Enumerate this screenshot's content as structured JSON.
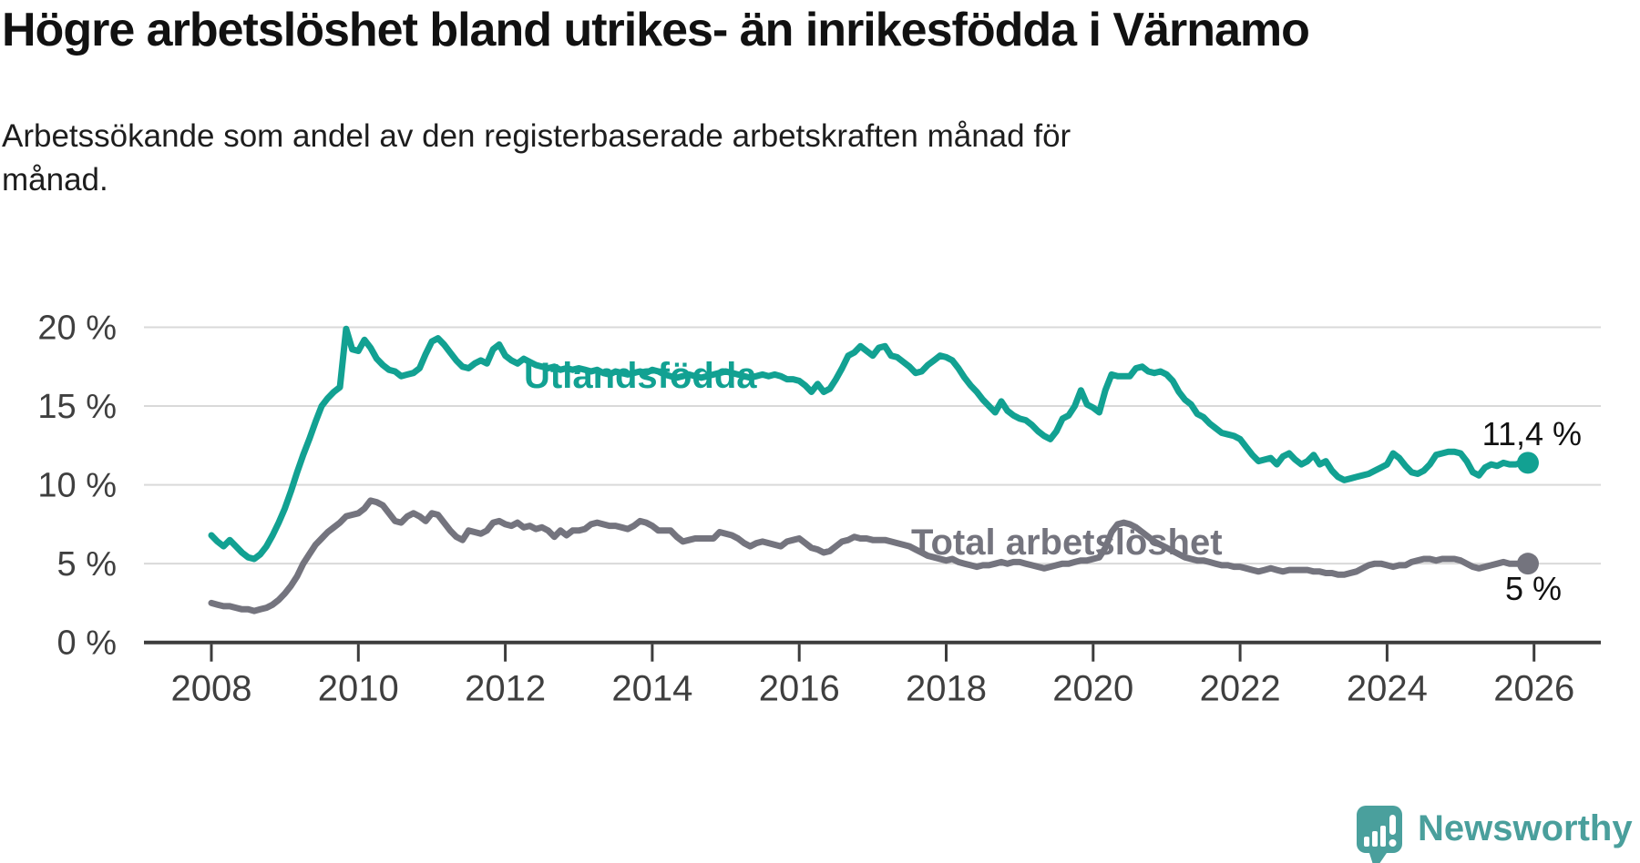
{
  "header": {
    "title": "Högre arbetslöshet bland utrikes- än inrikesfödda i Värnamo",
    "subtitle_lines": [
      "Arbetssökande som andel av den registerbaserade arbetskraften månad för",
      "månad."
    ]
  },
  "chart_data": {
    "type": "line",
    "title": "Högre arbetslöshet bland utrikes- än inrikesfödda i Värnamo",
    "subtitle": "Arbetssökande som andel av den registerbaserade arbetskraften månad för månad.",
    "x_unit": "year",
    "x_start_year": 2008,
    "points_per_year": 12,
    "x_ticks": [
      2008,
      2010,
      2012,
      2014,
      2016,
      2018,
      2020,
      2022,
      2024,
      2026
    ],
    "y_ticks": [
      0,
      5,
      10,
      15,
      20
    ],
    "y_tick_suffix": " %",
    "ylim": [
      0,
      21
    ],
    "grid": true,
    "legend_position": "inline-labels",
    "colors": {
      "grid": "#d9d9d9",
      "axis": "#3c3c3c",
      "tick_text": "#3f3f3f",
      "annotation_text": "#111111"
    },
    "series": [
      {
        "name": "Utlandsfödda",
        "color": "#12a192",
        "end_label": "11,4 %",
        "end_value": 11.4,
        "values": [
          6.8,
          6.4,
          6.1,
          6.5,
          6.1,
          5.7,
          5.4,
          5.3,
          5.6,
          6.1,
          6.8,
          7.6,
          8.5,
          9.6,
          10.8,
          11.9,
          12.9,
          14.0,
          15.0,
          15.5,
          15.9,
          16.2,
          19.9,
          18.6,
          18.5,
          19.2,
          18.7,
          18.0,
          17.6,
          17.3,
          17.2,
          16.9,
          17.0,
          17.1,
          17.4,
          18.3,
          19.1,
          19.3,
          18.9,
          18.4,
          17.9,
          17.5,
          17.4,
          17.7,
          17.9,
          17.7,
          18.6,
          18.9,
          18.2,
          17.9,
          17.7,
          18.0,
          17.8,
          17.6,
          17.5,
          17.4,
          17.5,
          17.3,
          17.4,
          17.3,
          17.4,
          17.3,
          17.2,
          17.3,
          17.1,
          17.0,
          17.2,
          17.1,
          17.0,
          17.1,
          17.2,
          17.1,
          17.3,
          17.2,
          17.0,
          16.9,
          16.8,
          16.9,
          17.0,
          16.9,
          16.8,
          16.9,
          17.0,
          17.1,
          17.2,
          17.1,
          17.0,
          16.9,
          16.8,
          16.9,
          17.0,
          16.9,
          17.0,
          16.9,
          16.7,
          16.7,
          16.6,
          16.3,
          15.9,
          16.4,
          15.9,
          16.1,
          16.7,
          17.4,
          18.2,
          18.4,
          18.8,
          18.5,
          18.2,
          18.7,
          18.8,
          18.2,
          18.1,
          17.8,
          17.5,
          17.1,
          17.2,
          17.6,
          17.9,
          18.2,
          18.1,
          17.9,
          17.4,
          16.8,
          16.3,
          15.9,
          15.4,
          15.0,
          14.6,
          15.3,
          14.7,
          14.4,
          14.2,
          14.1,
          13.8,
          13.4,
          13.1,
          12.9,
          13.4,
          14.2,
          14.4,
          15.0,
          16.0,
          15.1,
          14.9,
          14.6,
          16.0,
          17.0,
          16.9,
          16.9,
          16.9,
          17.4,
          17.5,
          17.2,
          17.1,
          17.2,
          17.0,
          16.6,
          15.9,
          15.4,
          15.1,
          14.5,
          14.3,
          13.9,
          13.6,
          13.3,
          13.2,
          13.1,
          12.9,
          12.4,
          11.9,
          11.5,
          11.6,
          11.7,
          11.3,
          11.8,
          12.0,
          11.6,
          11.3,
          11.5,
          11.9,
          11.3,
          11.5,
          10.9,
          10.5,
          10.3,
          10.4,
          10.5,
          10.6,
          10.7,
          10.9,
          11.1,
          11.3,
          12.0,
          11.7,
          11.2,
          10.8,
          10.7,
          10.9,
          11.3,
          11.9,
          12.0,
          12.1,
          12.1,
          12.0,
          11.5,
          10.8,
          10.6,
          11.1,
          11.3,
          11.2,
          11.4,
          11.3,
          11.3,
          11.4,
          11.4
        ]
      },
      {
        "name": "Total arbetslöshet",
        "color": "#74747e",
        "end_label": "5 %",
        "end_value": 5.0,
        "values": [
          2.5,
          2.4,
          2.3,
          2.3,
          2.2,
          2.1,
          2.1,
          2.0,
          2.1,
          2.2,
          2.4,
          2.7,
          3.1,
          3.6,
          4.2,
          5.0,
          5.6,
          6.2,
          6.6,
          7.0,
          7.3,
          7.6,
          8.0,
          8.1,
          8.2,
          8.5,
          9.0,
          8.9,
          8.7,
          8.2,
          7.7,
          7.6,
          8.0,
          8.2,
          8.0,
          7.7,
          8.2,
          8.1,
          7.6,
          7.1,
          6.7,
          6.5,
          7.1,
          7.0,
          6.9,
          7.1,
          7.6,
          7.7,
          7.5,
          7.4,
          7.6,
          7.3,
          7.4,
          7.2,
          7.3,
          7.1,
          6.7,
          7.1,
          6.8,
          7.1,
          7.1,
          7.2,
          7.5,
          7.6,
          7.5,
          7.4,
          7.4,
          7.3,
          7.2,
          7.4,
          7.7,
          7.6,
          7.4,
          7.1,
          7.1,
          7.1,
          6.7,
          6.4,
          6.5,
          6.6,
          6.6,
          6.6,
          6.6,
          7.0,
          6.9,
          6.8,
          6.6,
          6.3,
          6.1,
          6.3,
          6.4,
          6.3,
          6.2,
          6.1,
          6.4,
          6.5,
          6.6,
          6.3,
          6.0,
          5.9,
          5.7,
          5.8,
          6.1,
          6.4,
          6.5,
          6.7,
          6.6,
          6.6,
          6.5,
          6.5,
          6.5,
          6.4,
          6.3,
          6.2,
          6.1,
          5.9,
          5.7,
          5.5,
          5.4,
          5.3,
          5.2,
          5.3,
          5.1,
          5.0,
          4.9,
          4.8,
          4.9,
          4.9,
          5.0,
          5.1,
          5.0,
          5.1,
          5.1,
          5.0,
          4.9,
          4.8,
          4.7,
          4.8,
          4.9,
          5.0,
          5.0,
          5.1,
          5.2,
          5.2,
          5.3,
          5.4,
          6.0,
          7.0,
          7.5,
          7.6,
          7.5,
          7.3,
          7.0,
          6.7,
          6.4,
          6.2,
          6.0,
          5.8,
          5.6,
          5.4,
          5.3,
          5.2,
          5.2,
          5.1,
          5.0,
          4.9,
          4.9,
          4.8,
          4.8,
          4.7,
          4.6,
          4.5,
          4.6,
          4.7,
          4.6,
          4.5,
          4.6,
          4.6,
          4.6,
          4.6,
          4.5,
          4.5,
          4.4,
          4.4,
          4.3,
          4.3,
          4.4,
          4.5,
          4.7,
          4.9,
          5.0,
          5.0,
          4.9,
          4.8,
          4.9,
          4.9,
          5.1,
          5.2,
          5.3,
          5.3,
          5.2,
          5.3,
          5.3,
          5.3,
          5.2,
          5.0,
          4.8,
          4.7,
          4.8,
          4.9,
          5.0,
          5.1,
          5.0,
          5.0,
          5.0,
          5.0
        ]
      }
    ]
  },
  "branding": {
    "logo_text": "Newsworthy",
    "logo_icon": "newsworthy-speech-bubble-chart-icon",
    "logo_color": "#4a9f9c"
  }
}
